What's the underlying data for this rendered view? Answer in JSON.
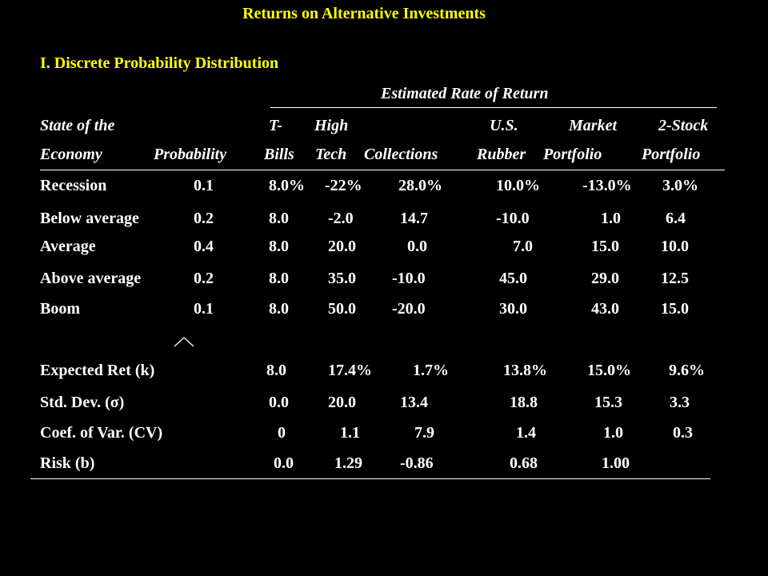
{
  "slide": {
    "title": "Returns on Alternative Investments",
    "section": "I.  Discrete Probability Distribution",
    "group_header": "Estimated Rate of Return"
  },
  "table": {
    "header_row1": [
      "State of the",
      "",
      "T-",
      "High",
      "",
      "U.S.",
      "Market",
      "2-Stock"
    ],
    "header_row2": [
      "Economy",
      "Probability",
      "Bills",
      "Tech",
      "Collections",
      "Rubber",
      "Portfolio",
      "Portfolio"
    ],
    "rows": [
      [
        "Recession",
        "0.1",
        "8.0%",
        "-22%",
        "28.0%",
        "10.0%",
        "-13.0%",
        "3.0%"
      ],
      [
        "Below average",
        "0.2",
        "8.0",
        "-2.0",
        "14.7",
        "-10.0",
        "1.0",
        "6.4"
      ],
      [
        "Average",
        "0.4",
        "8.0",
        "20.0",
        "0.0",
        "7.0",
        "15.0",
        "10.0"
      ],
      [
        "Above average",
        "0.2",
        "8.0",
        "35.0",
        "-10.0",
        "45.0",
        "29.0",
        "12.5"
      ],
      [
        "Boom",
        "0.1",
        "8.0",
        "50.0",
        "-20.0",
        "30.0",
        "43.0",
        "15.0"
      ]
    ],
    "stats": [
      [
        "Expected Ret (k)",
        "8.0",
        "17.4%",
        "1.7%",
        "13.8%",
        "15.0%",
        "9.6%"
      ],
      [
        "Std. Dev. (σ)",
        "0.0",
        "20.0",
        "13.4",
        "18.8",
        "15.3",
        "3.3"
      ],
      [
        "Coef. of Var. (CV)",
        "0",
        "1.1",
        "7.9",
        "1.4",
        "1.0",
        "0.3"
      ],
      [
        "Risk (b)",
        "0.0",
        "1.29",
        "-0.86",
        "0.68",
        "1.00",
        ""
      ]
    ]
  }
}
